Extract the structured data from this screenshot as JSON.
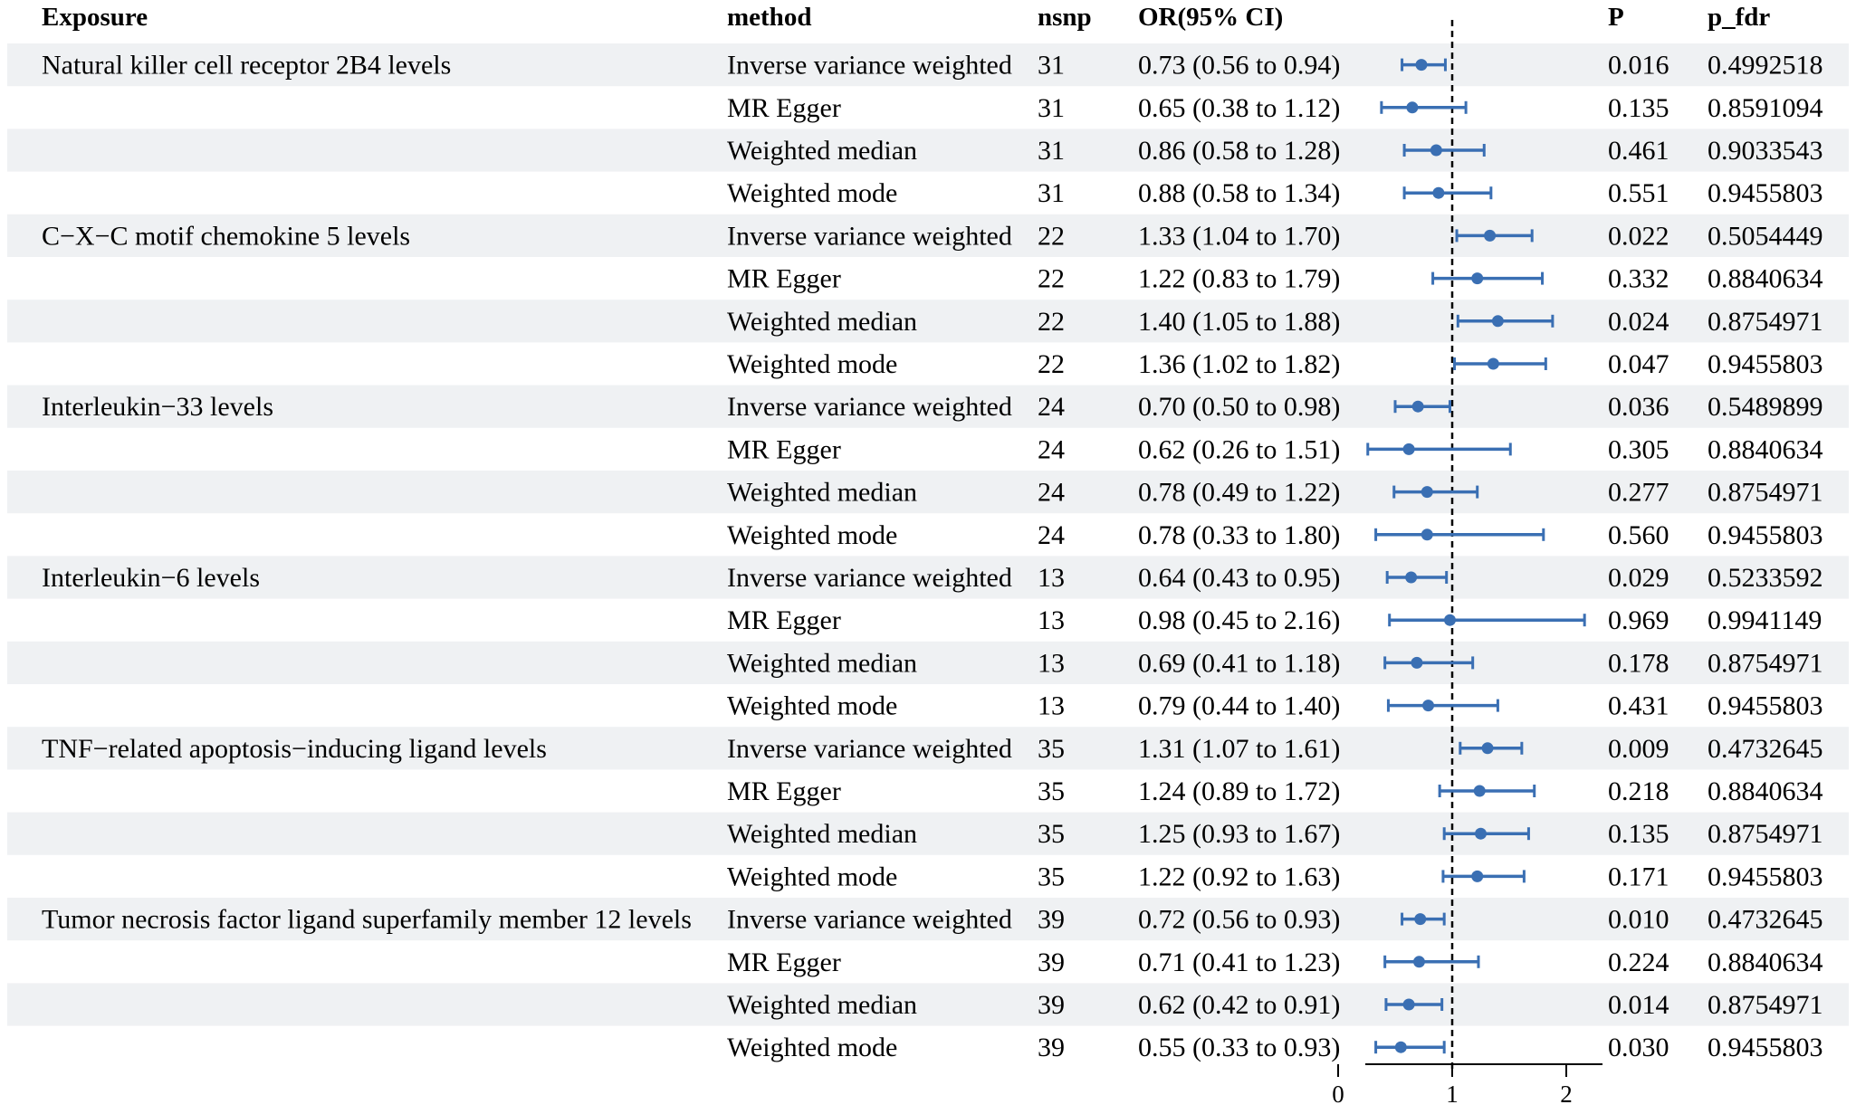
{
  "columns": {
    "exposure": "Exposure",
    "method": "method",
    "nsnp": "nsnp",
    "or_ci": "OR(95% CI)",
    "p": "P",
    "p_fdr": "p_fdr"
  },
  "colors": {
    "band": "#eff1f3",
    "marker": "#3a6fb3",
    "reference_line": "#000000"
  },
  "chart_data": {
    "type": "forest",
    "xlim": [
      0,
      2
    ],
    "xticks": [
      "0",
      "1",
      "2"
    ],
    "reference_line": 1,
    "grid": false,
    "rows": [
      {
        "exposure": "Natural killer cell receptor 2B4 levels",
        "method": "Inverse variance weighted",
        "nsnp": "31",
        "or_text": "0.73 (0.56 to 0.94)",
        "or": 0.73,
        "lower": 0.56,
        "upper": 0.94,
        "p": "0.016",
        "p_fdr": "0.4992518"
      },
      {
        "exposure": "",
        "method": "MR Egger",
        "nsnp": "31",
        "or_text": "0.65 (0.38 to 1.12)",
        "or": 0.65,
        "lower": 0.38,
        "upper": 1.12,
        "p": "0.135",
        "p_fdr": "0.8591094"
      },
      {
        "exposure": "",
        "method": "Weighted median",
        "nsnp": "31",
        "or_text": "0.86 (0.58 to 1.28)",
        "or": 0.86,
        "lower": 0.58,
        "upper": 1.28,
        "p": "0.461",
        "p_fdr": "0.9033543"
      },
      {
        "exposure": "",
        "method": "Weighted mode",
        "nsnp": "31",
        "or_text": "0.88 (0.58 to 1.34)",
        "or": 0.88,
        "lower": 0.58,
        "upper": 1.34,
        "p": "0.551",
        "p_fdr": "0.9455803"
      },
      {
        "exposure": "C−X−C motif chemokine 5 levels",
        "method": "Inverse variance weighted",
        "nsnp": "22",
        "or_text": "1.33 (1.04 to 1.70)",
        "or": 1.33,
        "lower": 1.04,
        "upper": 1.7,
        "p": "0.022",
        "p_fdr": "0.5054449"
      },
      {
        "exposure": "",
        "method": "MR Egger",
        "nsnp": "22",
        "or_text": "1.22 (0.83 to 1.79)",
        "or": 1.22,
        "lower": 0.83,
        "upper": 1.79,
        "p": "0.332",
        "p_fdr": "0.8840634"
      },
      {
        "exposure": "",
        "method": "Weighted median",
        "nsnp": "22",
        "or_text": "1.40 (1.05 to 1.88)",
        "or": 1.4,
        "lower": 1.05,
        "upper": 1.88,
        "p": "0.024",
        "p_fdr": "0.8754971"
      },
      {
        "exposure": "",
        "method": "Weighted mode",
        "nsnp": "22",
        "or_text": "1.36 (1.02 to 1.82)",
        "or": 1.36,
        "lower": 1.02,
        "upper": 1.82,
        "p": "0.047",
        "p_fdr": "0.9455803"
      },
      {
        "exposure": "Interleukin−33 levels",
        "method": "Inverse variance weighted",
        "nsnp": "24",
        "or_text": "0.70 (0.50 to 0.98)",
        "or": 0.7,
        "lower": 0.5,
        "upper": 0.98,
        "p": "0.036",
        "p_fdr": "0.5489899"
      },
      {
        "exposure": "",
        "method": "MR Egger",
        "nsnp": "24",
        "or_text": "0.62 (0.26 to 1.51)",
        "or": 0.62,
        "lower": 0.26,
        "upper": 1.51,
        "p": "0.305",
        "p_fdr": "0.8840634"
      },
      {
        "exposure": "",
        "method": "Weighted median",
        "nsnp": "24",
        "or_text": "0.78 (0.49 to 1.22)",
        "or": 0.78,
        "lower": 0.49,
        "upper": 1.22,
        "p": "0.277",
        "p_fdr": "0.8754971"
      },
      {
        "exposure": "",
        "method": "Weighted mode",
        "nsnp": "24",
        "or_text": "0.78 (0.33 to 1.80)",
        "or": 0.78,
        "lower": 0.33,
        "upper": 1.8,
        "p": "0.560",
        "p_fdr": "0.9455803"
      },
      {
        "exposure": "Interleukin−6 levels",
        "method": "Inverse variance weighted",
        "nsnp": "13",
        "or_text": "0.64 (0.43 to 0.95)",
        "or": 0.64,
        "lower": 0.43,
        "upper": 0.95,
        "p": "0.029",
        "p_fdr": "0.5233592"
      },
      {
        "exposure": "",
        "method": "MR Egger",
        "nsnp": "13",
        "or_text": "0.98 (0.45 to 2.16)",
        "or": 0.98,
        "lower": 0.45,
        "upper": 2.16,
        "p": "0.969",
        "p_fdr": "0.9941149"
      },
      {
        "exposure": "",
        "method": "Weighted median",
        "nsnp": "13",
        "or_text": "0.69 (0.41 to 1.18)",
        "or": 0.69,
        "lower": 0.41,
        "upper": 1.18,
        "p": "0.178",
        "p_fdr": "0.8754971"
      },
      {
        "exposure": "",
        "method": "Weighted mode",
        "nsnp": "13",
        "or_text": "0.79 (0.44 to 1.40)",
        "or": 0.79,
        "lower": 0.44,
        "upper": 1.4,
        "p": "0.431",
        "p_fdr": "0.9455803"
      },
      {
        "exposure": "TNF−related apoptosis−inducing ligand levels",
        "method": "Inverse variance weighted",
        "nsnp": "35",
        "or_text": "1.31 (1.07 to 1.61)",
        "or": 1.31,
        "lower": 1.07,
        "upper": 1.61,
        "p": "0.009",
        "p_fdr": "0.4732645"
      },
      {
        "exposure": "",
        "method": "MR Egger",
        "nsnp": "35",
        "or_text": "1.24 (0.89 to 1.72)",
        "or": 1.24,
        "lower": 0.89,
        "upper": 1.72,
        "p": "0.218",
        "p_fdr": "0.8840634"
      },
      {
        "exposure": "",
        "method": "Weighted median",
        "nsnp": "35",
        "or_text": "1.25 (0.93 to 1.67)",
        "or": 1.25,
        "lower": 0.93,
        "upper": 1.67,
        "p": "0.135",
        "p_fdr": "0.8754971"
      },
      {
        "exposure": "",
        "method": "Weighted mode",
        "nsnp": "35",
        "or_text": "1.22 (0.92 to 1.63)",
        "or": 1.22,
        "lower": 0.92,
        "upper": 1.63,
        "p": "0.171",
        "p_fdr": "0.9455803"
      },
      {
        "exposure": "Tumor necrosis factor ligand superfamily member 12 levels",
        "method": "Inverse variance weighted",
        "nsnp": "39",
        "or_text": "0.72 (0.56 to 0.93)",
        "or": 0.72,
        "lower": 0.56,
        "upper": 0.93,
        "p": "0.010",
        "p_fdr": "0.4732645"
      },
      {
        "exposure": "",
        "method": "MR Egger",
        "nsnp": "39",
        "or_text": "0.71 (0.41 to 1.23)",
        "or": 0.71,
        "lower": 0.41,
        "upper": 1.23,
        "p": "0.224",
        "p_fdr": "0.8840634"
      },
      {
        "exposure": "",
        "method": "Weighted median",
        "nsnp": "39",
        "or_text": "0.62 (0.42 to 0.91)",
        "or": 0.62,
        "lower": 0.42,
        "upper": 0.91,
        "p": "0.014",
        "p_fdr": "0.8754971"
      },
      {
        "exposure": "",
        "method": "Weighted mode",
        "nsnp": "39",
        "or_text": "0.55 (0.33 to 0.93)",
        "or": 0.55,
        "lower": 0.33,
        "upper": 0.93,
        "p": "0.030",
        "p_fdr": "0.9455803"
      }
    ]
  }
}
